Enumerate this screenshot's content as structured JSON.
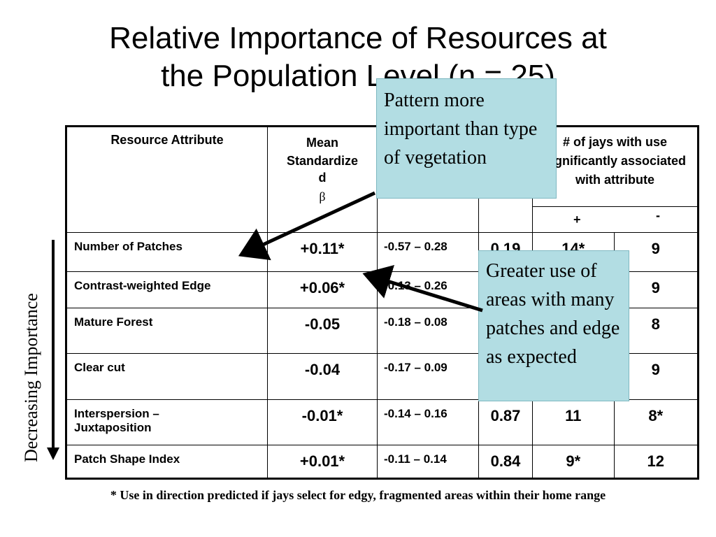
{
  "title": {
    "line1": "Relative Importance of Resources at",
    "line2": "the Population Level (n = 25)"
  },
  "table": {
    "headers": {
      "attribute": "Resource Attribute",
      "mean_line1": "Mean",
      "mean_line2": "Standardize",
      "mean_line3": "d",
      "mean_symbol": "β",
      "jays": "# of jays with use significantly associated with attribute",
      "plus": "+",
      "minus": "-"
    },
    "rows": [
      {
        "attribute": "Number of Patches",
        "mean": "+0.11*",
        "ci": "-0.57 – 0.28",
        "p": "0.19",
        "pos": "14*",
        "neg": "9"
      },
      {
        "attribute": "Contrast-weighted Edge",
        "mean": "+0.06*",
        "ci": "-0.13 – 0.26",
        "p": "",
        "pos": "",
        "neg": "9"
      },
      {
        "attribute": "Mature Forest",
        "mean": "-0.05",
        "ci": "-0.18 – 0.08",
        "p": "",
        "pos": "",
        "neg": "8"
      },
      {
        "attribute": "Clear cut",
        "mean": "-0.04",
        "ci": "-0.17 – 0.09",
        "p": "",
        "pos": "",
        "neg": "9"
      },
      {
        "attribute_line1": "Interspersion –",
        "attribute_line2": "Juxtaposition",
        "mean": "-0.01*",
        "ci": "-0.14 – 0.16",
        "p": "0.87",
        "pos": "11",
        "neg": "8*"
      },
      {
        "attribute": "Patch Shape Index",
        "mean": "+0.01*",
        "ci": "-0.11 – 0.14",
        "p": "0.84",
        "pos": "9*",
        "neg": "12"
      }
    ]
  },
  "callouts": {
    "pattern": "Pattern more important than type of vegetation",
    "greater_use": "Greater use of areas with many patches and edge as expected"
  },
  "side_label": "Decreasing Importance",
  "footnote": "* Use in direction predicted if jays select for edgy, fragmented areas within their home range",
  "colors": {
    "callout_fill": "#b2dde3"
  }
}
